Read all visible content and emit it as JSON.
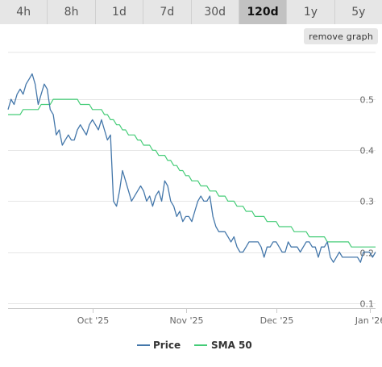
{
  "tabs": [
    {
      "label": "4h",
      "active": false
    },
    {
      "label": "8h",
      "active": false
    },
    {
      "label": "1d",
      "active": false
    },
    {
      "label": "7d",
      "active": false
    },
    {
      "label": "30d",
      "active": false
    },
    {
      "label": "120d",
      "active": true
    },
    {
      "label": "1y",
      "active": false
    },
    {
      "label": "5y",
      "active": false
    }
  ],
  "remove_graph_label": "remove graph",
  "colors": {
    "price": "#4477aa",
    "sma": "#44cc77",
    "grid": "#e6e6e6"
  },
  "chart_data": {
    "type": "line",
    "x_start": "2025-09-03",
    "x_end": "2026-01-03",
    "x_ticks": [
      {
        "label": "Oct '25",
        "date": "2025-10-01"
      },
      {
        "label": "Nov '25",
        "date": "2025-11-01"
      },
      {
        "label": "Dec '25",
        "date": "2025-12-01"
      },
      {
        "label": "Jan '26",
        "date": "2026-01-01"
      }
    ],
    "y_ticks": [
      0.1,
      0.2,
      0.3,
      0.4,
      0.5
    ],
    "ylim": [
      0.09,
      0.6
    ],
    "grid": true,
    "legend_position": "bottom-center",
    "series": [
      {
        "name": "Price",
        "x": [
          "2025-09-03",
          "2025-09-04",
          "2025-09-05",
          "2025-09-06",
          "2025-09-07",
          "2025-09-08",
          "2025-09-09",
          "2025-09-10",
          "2025-09-11",
          "2025-09-12",
          "2025-09-13",
          "2025-09-14",
          "2025-09-15",
          "2025-09-16",
          "2025-09-17",
          "2025-09-18",
          "2025-09-19",
          "2025-09-20",
          "2025-09-21",
          "2025-09-22",
          "2025-09-23",
          "2025-09-24",
          "2025-09-25",
          "2025-09-26",
          "2025-09-27",
          "2025-09-28",
          "2025-09-29",
          "2025-09-30",
          "2025-10-01",
          "2025-10-02",
          "2025-10-03",
          "2025-10-04",
          "2025-10-05",
          "2025-10-06",
          "2025-10-07",
          "2025-10-08",
          "2025-10-09",
          "2025-10-10",
          "2025-10-11",
          "2025-10-12",
          "2025-10-13",
          "2025-10-14",
          "2025-10-15",
          "2025-10-16",
          "2025-10-17",
          "2025-10-18",
          "2025-10-19",
          "2025-10-20",
          "2025-10-21",
          "2025-10-22",
          "2025-10-23",
          "2025-10-24",
          "2025-10-25",
          "2025-10-26",
          "2025-10-27",
          "2025-10-28",
          "2025-10-29",
          "2025-10-30",
          "2025-10-31",
          "2025-11-01",
          "2025-11-02",
          "2025-11-03",
          "2025-11-04",
          "2025-11-05",
          "2025-11-06",
          "2025-11-07",
          "2025-11-08",
          "2025-11-09",
          "2025-11-10",
          "2025-11-11",
          "2025-11-12",
          "2025-11-13",
          "2025-11-14",
          "2025-11-15",
          "2025-11-16",
          "2025-11-17",
          "2025-11-18",
          "2025-11-19",
          "2025-11-20",
          "2025-11-21",
          "2025-11-22",
          "2025-11-23",
          "2025-11-24",
          "2025-11-25",
          "2025-11-26",
          "2025-11-27",
          "2025-11-28",
          "2025-11-29",
          "2025-11-30",
          "2025-12-01",
          "2025-12-02",
          "2025-12-03",
          "2025-12-04",
          "2025-12-05",
          "2025-12-06",
          "2025-12-07",
          "2025-12-08",
          "2025-12-09",
          "2025-12-10",
          "2025-12-11",
          "2025-12-12",
          "2025-12-13",
          "2025-12-14",
          "2025-12-15",
          "2025-12-16",
          "2025-12-17",
          "2025-12-18",
          "2025-12-19",
          "2025-12-20",
          "2025-12-21",
          "2025-12-22",
          "2025-12-23",
          "2025-12-24",
          "2025-12-25",
          "2025-12-26",
          "2025-12-27",
          "2025-12-28",
          "2025-12-29",
          "2025-12-30",
          "2025-12-31",
          "2026-01-01",
          "2026-01-02",
          "2026-01-03"
        ],
        "values": [
          0.48,
          0.5,
          0.49,
          0.51,
          0.52,
          0.51,
          0.53,
          0.54,
          0.55,
          0.53,
          0.49,
          0.51,
          0.53,
          0.52,
          0.48,
          0.47,
          0.43,
          0.44,
          0.41,
          0.42,
          0.43,
          0.42,
          0.42,
          0.44,
          0.45,
          0.44,
          0.43,
          0.45,
          0.46,
          0.45,
          0.44,
          0.46,
          0.44,
          0.42,
          0.43,
          0.3,
          0.29,
          0.32,
          0.36,
          0.34,
          0.32,
          0.3,
          0.31,
          0.32,
          0.33,
          0.32,
          0.3,
          0.31,
          0.29,
          0.31,
          0.32,
          0.3,
          0.34,
          0.33,
          0.3,
          0.29,
          0.27,
          0.28,
          0.26,
          0.27,
          0.27,
          0.26,
          0.28,
          0.3,
          0.31,
          0.3,
          0.3,
          0.31,
          0.27,
          0.25,
          0.24,
          0.24,
          0.24,
          0.23,
          0.22,
          0.23,
          0.21,
          0.2,
          0.2,
          0.21,
          0.22,
          0.22,
          0.22,
          0.22,
          0.21,
          0.19,
          0.21,
          0.21,
          0.22,
          0.22,
          0.21,
          0.2,
          0.2,
          0.22,
          0.21,
          0.21,
          0.21,
          0.2,
          0.21,
          0.22,
          0.22,
          0.21,
          0.21,
          0.19,
          0.21,
          0.21,
          0.22,
          0.19,
          0.18,
          0.19,
          0.2,
          0.19,
          0.19,
          0.19,
          0.19,
          0.19,
          0.19,
          0.18,
          0.2,
          0.2,
          0.2,
          0.19,
          0.2
        ]
      },
      {
        "name": "SMA 50",
        "x": [
          "2025-09-03",
          "2025-09-04",
          "2025-09-05",
          "2025-09-06",
          "2025-09-07",
          "2025-09-08",
          "2025-09-09",
          "2025-09-10",
          "2025-09-11",
          "2025-09-12",
          "2025-09-13",
          "2025-09-14",
          "2025-09-15",
          "2025-09-16",
          "2025-09-17",
          "2025-09-18",
          "2025-09-19",
          "2025-09-20",
          "2025-09-21",
          "2025-09-22",
          "2025-09-23",
          "2025-09-24",
          "2025-09-25",
          "2025-09-26",
          "2025-09-27",
          "2025-09-28",
          "2025-09-29",
          "2025-09-30",
          "2025-10-01",
          "2025-10-02",
          "2025-10-03",
          "2025-10-04",
          "2025-10-05",
          "2025-10-06",
          "2025-10-07",
          "2025-10-08",
          "2025-10-09",
          "2025-10-10",
          "2025-10-11",
          "2025-10-12",
          "2025-10-13",
          "2025-10-14",
          "2025-10-15",
          "2025-10-16",
          "2025-10-17",
          "2025-10-18",
          "2025-10-19",
          "2025-10-20",
          "2025-10-21",
          "2025-10-22",
          "2025-10-23",
          "2025-10-24",
          "2025-10-25",
          "2025-10-26",
          "2025-10-27",
          "2025-10-28",
          "2025-10-29",
          "2025-10-30",
          "2025-10-31",
          "2025-11-01",
          "2025-11-02",
          "2025-11-03",
          "2025-11-04",
          "2025-11-05",
          "2025-11-06",
          "2025-11-07",
          "2025-11-08",
          "2025-11-09",
          "2025-11-10",
          "2025-11-11",
          "2025-11-12",
          "2025-11-13",
          "2025-11-14",
          "2025-11-15",
          "2025-11-16",
          "2025-11-17",
          "2025-11-18",
          "2025-11-19",
          "2025-11-20",
          "2025-11-21",
          "2025-11-22",
          "2025-11-23",
          "2025-11-24",
          "2025-11-25",
          "2025-11-26",
          "2025-11-27",
          "2025-11-28",
          "2025-11-29",
          "2025-11-30",
          "2025-12-01",
          "2025-12-02",
          "2025-12-03",
          "2025-12-04",
          "2025-12-05",
          "2025-12-06",
          "2025-12-07",
          "2025-12-08",
          "2025-12-09",
          "2025-12-10",
          "2025-12-11",
          "2025-12-12",
          "2025-12-13",
          "2025-12-14",
          "2025-12-15",
          "2025-12-16",
          "2025-12-17",
          "2025-12-18",
          "2025-12-19",
          "2025-12-20",
          "2025-12-21",
          "2025-12-22",
          "2025-12-23",
          "2025-12-24",
          "2025-12-25",
          "2025-12-26",
          "2025-12-27",
          "2025-12-28",
          "2025-12-29",
          "2025-12-30",
          "2025-12-31",
          "2026-01-01",
          "2026-01-02",
          "2026-01-03"
        ],
        "values": [
          0.47,
          0.47,
          0.47,
          0.47,
          0.47,
          0.48,
          0.48,
          0.48,
          0.48,
          0.48,
          0.48,
          0.49,
          0.49,
          0.49,
          0.49,
          0.5,
          0.5,
          0.5,
          0.5,
          0.5,
          0.5,
          0.5,
          0.5,
          0.5,
          0.49,
          0.49,
          0.49,
          0.49,
          0.48,
          0.48,
          0.48,
          0.48,
          0.47,
          0.47,
          0.46,
          0.46,
          0.45,
          0.45,
          0.44,
          0.44,
          0.43,
          0.43,
          0.43,
          0.42,
          0.42,
          0.41,
          0.41,
          0.41,
          0.4,
          0.4,
          0.39,
          0.39,
          0.39,
          0.38,
          0.38,
          0.37,
          0.37,
          0.36,
          0.36,
          0.35,
          0.35,
          0.34,
          0.34,
          0.34,
          0.33,
          0.33,
          0.33,
          0.32,
          0.32,
          0.32,
          0.31,
          0.31,
          0.31,
          0.3,
          0.3,
          0.3,
          0.29,
          0.29,
          0.29,
          0.28,
          0.28,
          0.28,
          0.27,
          0.27,
          0.27,
          0.27,
          0.26,
          0.26,
          0.26,
          0.26,
          0.25,
          0.25,
          0.25,
          0.25,
          0.25,
          0.24,
          0.24,
          0.24,
          0.24,
          0.24,
          0.23,
          0.23,
          0.23,
          0.23,
          0.23,
          0.23,
          0.22,
          0.22,
          0.22,
          0.22,
          0.22,
          0.22,
          0.22,
          0.22,
          0.21,
          0.21,
          0.21,
          0.21,
          0.21,
          0.21,
          0.21,
          0.21,
          0.21
        ]
      }
    ]
  }
}
